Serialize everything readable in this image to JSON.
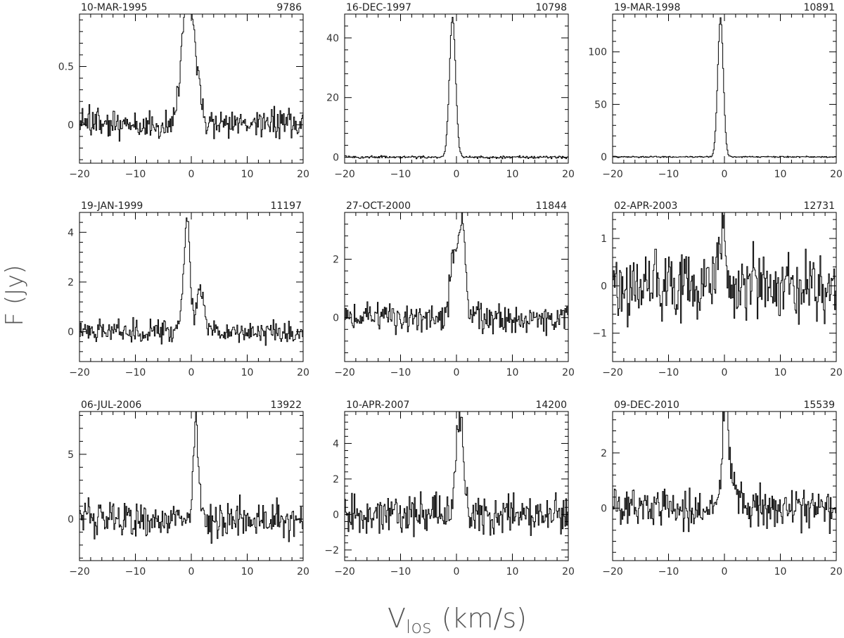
{
  "figure": {
    "ylabel": "F (Jy)",
    "xlabel_main": "V",
    "xlabel_sub": "los",
    "xlabel_unit": "(km/s)"
  },
  "chart_data": [
    {
      "type": "line",
      "date": "10-MAR-1995",
      "id": "9786",
      "xlim": [
        -20,
        20
      ],
      "ylim": [
        -0.33,
        0.95
      ],
      "xticks": [
        -20,
        -10,
        0,
        10,
        20
      ],
      "yticks": [
        0,
        0.5
      ],
      "ytick_labels": [
        "0",
        "0.5"
      ],
      "peak_v": -0.3,
      "peak_f": 0.92,
      "width": 1.2,
      "noise": 0.1,
      "components": [
        [
          -1.0,
          0.3,
          0.8
        ]
      ],
      "seed": 11
    },
    {
      "type": "line",
      "date": "16-DEC-1997",
      "id": "10798",
      "xlim": [
        -20,
        20
      ],
      "ylim": [
        -2,
        48
      ],
      "xticks": [
        -20,
        -10,
        0,
        10,
        20
      ],
      "yticks": [
        0,
        20,
        40
      ],
      "ytick_labels": [
        "0",
        "20",
        "40"
      ],
      "peak_v": -0.7,
      "peak_f": 47,
      "width": 0.55,
      "noise": 0.35,
      "components": [],
      "seed": 22
    },
    {
      "type": "line",
      "date": "19-MAR-1998",
      "id": "10891",
      "xlim": [
        -20,
        20
      ],
      "ylim": [
        -6,
        136
      ],
      "xticks": [
        -20,
        -10,
        0,
        10,
        20
      ],
      "yticks": [
        0,
        50,
        100
      ],
      "ytick_labels": [
        "0",
        "50",
        "100"
      ],
      "peak_v": -0.7,
      "peak_f": 132,
      "width": 0.5,
      "noise": 0.5,
      "components": [],
      "seed": 33
    },
    {
      "type": "line",
      "date": "19-JAN-1999",
      "id": "11197",
      "xlim": [
        -20,
        20
      ],
      "ylim": [
        -1.2,
        4.8
      ],
      "xticks": [
        -20,
        -10,
        0,
        10,
        20
      ],
      "yticks": [
        0,
        2,
        4
      ],
      "ytick_labels": [
        "0",
        "2",
        "4"
      ],
      "peak_v": -0.8,
      "peak_f": 4.5,
      "width": 0.55,
      "noise": 0.35,
      "components": [
        [
          1.6,
          1.8,
          0.6
        ]
      ],
      "seed": 44
    },
    {
      "type": "line",
      "date": "27-OCT-2000",
      "id": "11844",
      "xlim": [
        -20,
        20
      ],
      "ylim": [
        -1.5,
        3.6
      ],
      "xticks": [
        -20,
        -10,
        0,
        10,
        20
      ],
      "yticks": [
        0,
        2
      ],
      "ytick_labels": [
        "0",
        "2"
      ],
      "peak_v": 1.0,
      "peak_f": 3.3,
      "width": 0.6,
      "noise": 0.4,
      "components": [
        [
          -0.5,
          2.3,
          0.6
        ]
      ],
      "seed": 55
    },
    {
      "type": "line",
      "date": "02-APR-2003",
      "id": "12731",
      "xlim": [
        -20,
        20
      ],
      "ylim": [
        -1.6,
        1.55
      ],
      "xticks": [
        -20,
        -10,
        0,
        10,
        20
      ],
      "yticks": [
        -1,
        0,
        1
      ],
      "ytick_labels": [
        "-1",
        "0",
        "1"
      ],
      "peak_v": -0.5,
      "peak_f": 1.3,
      "width": 0.6,
      "noise": 0.55,
      "components": [],
      "seed": 66
    },
    {
      "type": "line",
      "date": "06-JUL-2006",
      "id": "13922",
      "xlim": [
        -20,
        20
      ],
      "ylim": [
        -3.2,
        8.3
      ],
      "xticks": [
        -20,
        -10,
        0,
        10,
        20
      ],
      "yticks": [
        0,
        5
      ],
      "ytick_labels": [
        "0",
        "5"
      ],
      "peak_v": 0.8,
      "peak_f": 8.0,
      "width": 0.45,
      "noise": 1.1,
      "components": [],
      "seed": 77
    },
    {
      "type": "line",
      "date": "10-APR-2007",
      "id": "14200",
      "xlim": [
        -20,
        20
      ],
      "ylim": [
        -2.6,
        5.8
      ],
      "xticks": [
        -20,
        -10,
        0,
        10,
        20
      ],
      "yticks": [
        -2,
        0,
        2,
        4
      ],
      "ytick_labels": [
        "-2",
        "0",
        "2",
        "4"
      ],
      "peak_v": 0.6,
      "peak_f": 5.4,
      "width": 0.7,
      "noise": 0.85,
      "components": [],
      "seed": 88
    },
    {
      "type": "line",
      "date": "09-DEC-2010",
      "id": "15539",
      "xlim": [
        -20,
        20
      ],
      "ylim": [
        -1.9,
        3.5
      ],
      "xticks": [
        -20,
        -10,
        0,
        10,
        20
      ],
      "yticks": [
        0,
        2
      ],
      "ytick_labels": [
        "0",
        "2"
      ],
      "peak_v": 0.2,
      "peak_f": 3.2,
      "width": 0.5,
      "noise": 0.55,
      "components": [
        [
          1.2,
          0.9,
          1.5
        ]
      ],
      "seed": 99
    }
  ]
}
